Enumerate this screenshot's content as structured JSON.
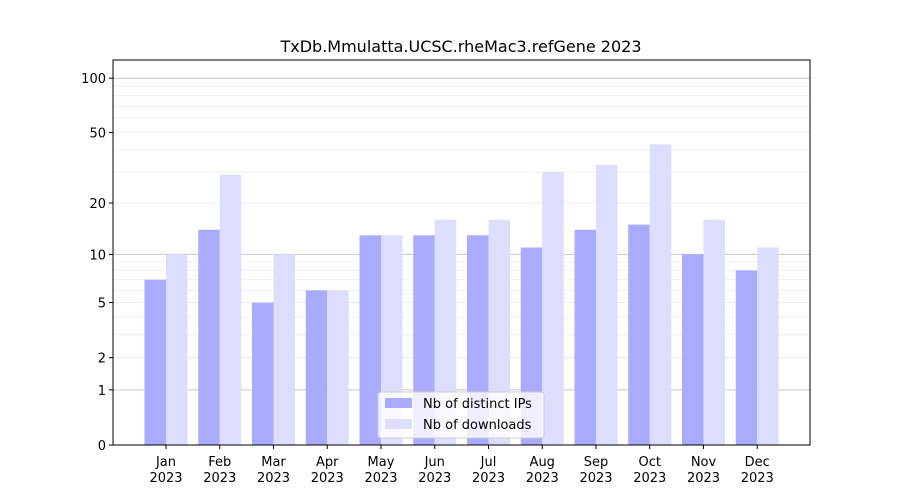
{
  "chart_data": {
    "type": "bar",
    "title": "TxDb.Mmulatta.UCSC.rheMac3.refGene 2023",
    "xlabel": "",
    "ylabel": "",
    "yscale": "log(1+x)",
    "ylim": [
      0,
      120
    ],
    "yticks": [
      0,
      1,
      2,
      5,
      10,
      20,
      50,
      100
    ],
    "ytick_labels": [
      "0",
      "1",
      "2",
      "5",
      "10",
      "20",
      "50",
      "100"
    ],
    "categories": [
      "Jan",
      "Feb",
      "Mar",
      "Apr",
      "May",
      "Jun",
      "Jul",
      "Aug",
      "Sep",
      "Oct",
      "Nov",
      "Dec"
    ],
    "category_sublabel": "2023",
    "series": [
      {
        "name": "Nb of distinct IPs",
        "color": "#aaaaff",
        "values": [
          7,
          14,
          5,
          6,
          13,
          13,
          13,
          11,
          14,
          15,
          10,
          8
        ]
      },
      {
        "name": "Nb of downloads",
        "color": "#ddddff",
        "values": [
          10,
          29,
          10,
          6,
          13,
          16,
          16,
          30,
          33,
          43,
          16,
          11
        ]
      }
    ],
    "legend_position": "lower-center",
    "grid": true
  }
}
